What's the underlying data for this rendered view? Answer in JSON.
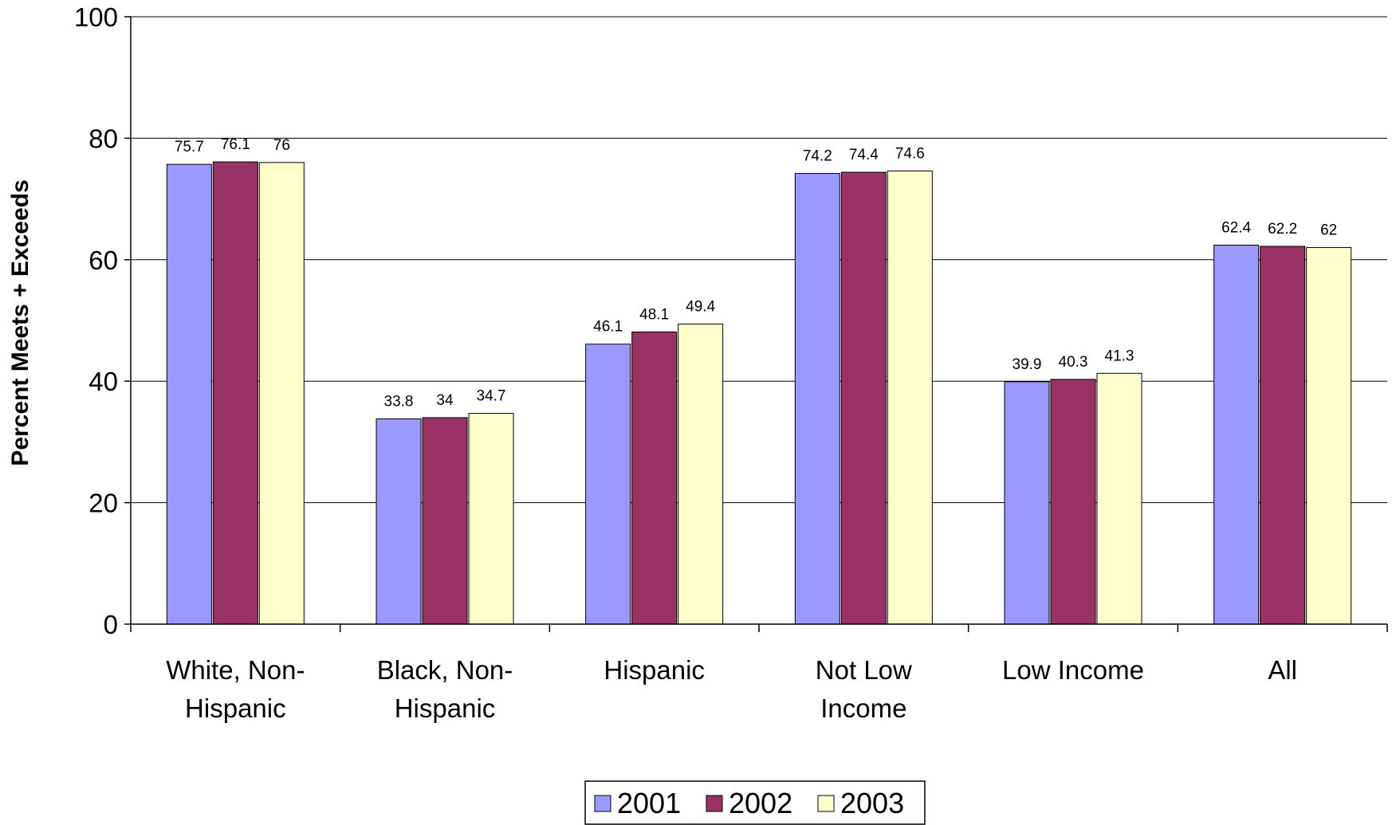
{
  "chart_data": {
    "type": "bar",
    "title": "",
    "xlabel": "",
    "ylabel": "Percent Meets + Exceeds",
    "ylim": [
      0,
      100
    ],
    "yticks": [
      0,
      20,
      40,
      60,
      80,
      100
    ],
    "grid": true,
    "legend_position": "bottom",
    "categories": [
      [
        "White, Non-",
        "Hispanic"
      ],
      [
        "Black, Non-",
        "Hispanic"
      ],
      [
        "Hispanic"
      ],
      [
        "Not Low",
        "Income"
      ],
      [
        "Low Income"
      ],
      [
        "All"
      ]
    ],
    "series": [
      {
        "name": "2001",
        "color": "#9999FF",
        "values": [
          75.7,
          33.8,
          46.1,
          74.2,
          39.9,
          62.4
        ]
      },
      {
        "name": "2002",
        "color": "#993366",
        "values": [
          76.1,
          34,
          48.1,
          74.4,
          40.3,
          62.2
        ]
      },
      {
        "name": "2003",
        "color": "#FFFFCC",
        "values": [
          76,
          34.7,
          49.4,
          74.6,
          41.3,
          62
        ]
      }
    ]
  }
}
